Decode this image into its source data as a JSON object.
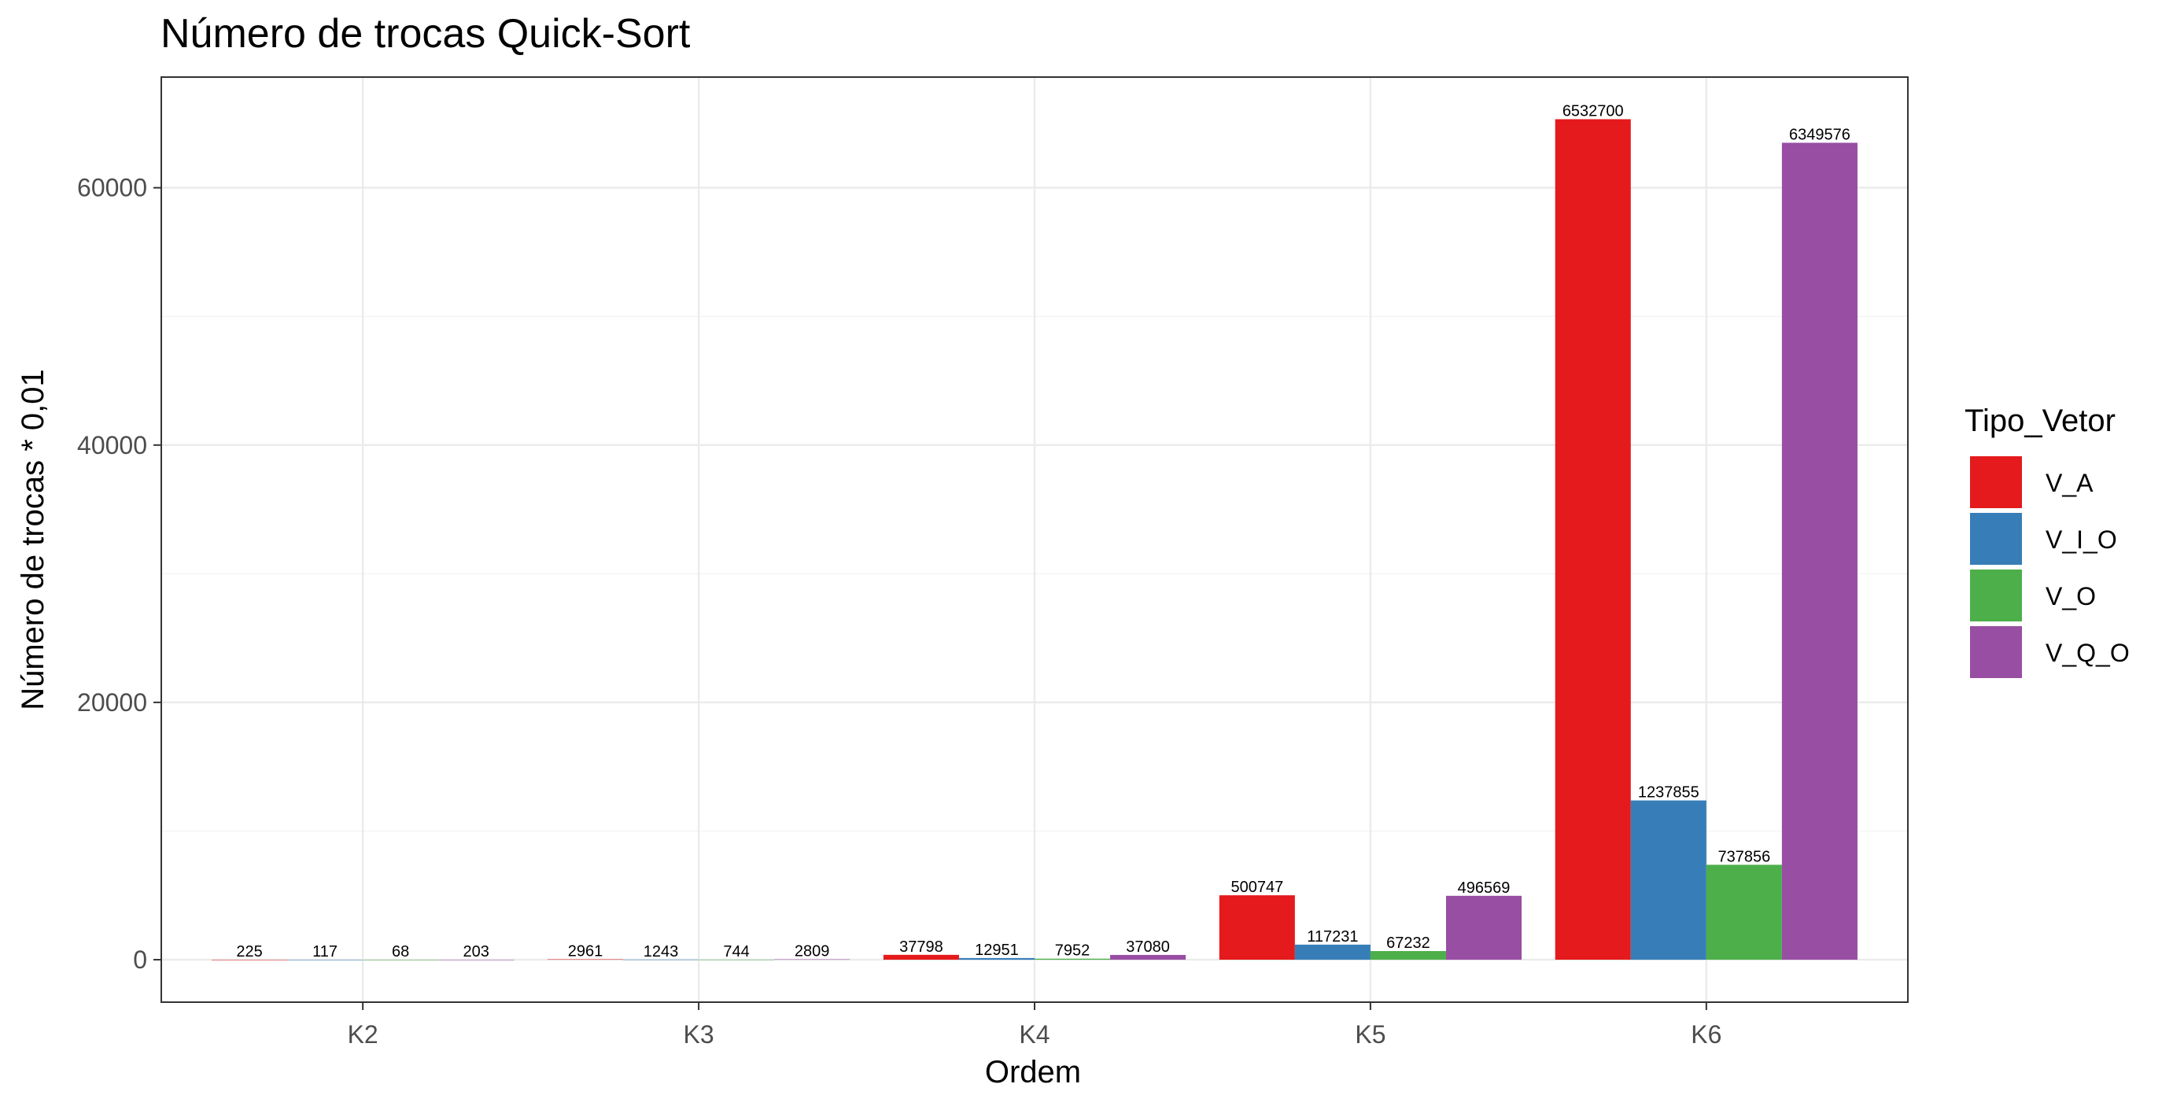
{
  "chart_data": {
    "type": "bar",
    "title": "Número de trocas Quick-Sort",
    "xlabel": "Ordem",
    "ylabel": "Número de trocas * 0,01",
    "categories": [
      "K2",
      "K3",
      "K4",
      "K5",
      "K6"
    ],
    "ylim": [
      -3300,
      68600
    ],
    "yticks": [
      0,
      20000,
      40000,
      60000
    ],
    "y_tick_labels": [
      "0",
      "20000",
      "40000",
      "60000"
    ],
    "grid": true,
    "legend_title": "Tipo_Vetor",
    "legend_position": "right",
    "series": [
      {
        "name": "V_A",
        "color": "#E41A1C",
        "values": [
          2.25,
          29.61,
          377.98,
          5007.47,
          65327.0
        ],
        "labels": [
          "225",
          "2961",
          "37798",
          "500747",
          "6532700"
        ]
      },
      {
        "name": "V_I_O",
        "color": "#377EB8",
        "values": [
          1.17,
          12.43,
          129.51,
          1172.31,
          12378.55
        ],
        "labels": [
          "117",
          "1243",
          "12951",
          "117231",
          "1237855"
        ]
      },
      {
        "name": "V_O",
        "color": "#4DAF4A",
        "values": [
          0.68,
          7.44,
          79.52,
          672.32,
          7378.56
        ],
        "labels": [
          "68",
          "744",
          "7952",
          "67232",
          "737856"
        ]
      },
      {
        "name": "V_Q_O",
        "color": "#984EA3",
        "values": [
          2.03,
          28.09,
          370.8,
          4965.69,
          63495.76
        ],
        "labels": [
          "203",
          "2809",
          "37080",
          "496569",
          "6349576"
        ]
      }
    ]
  }
}
